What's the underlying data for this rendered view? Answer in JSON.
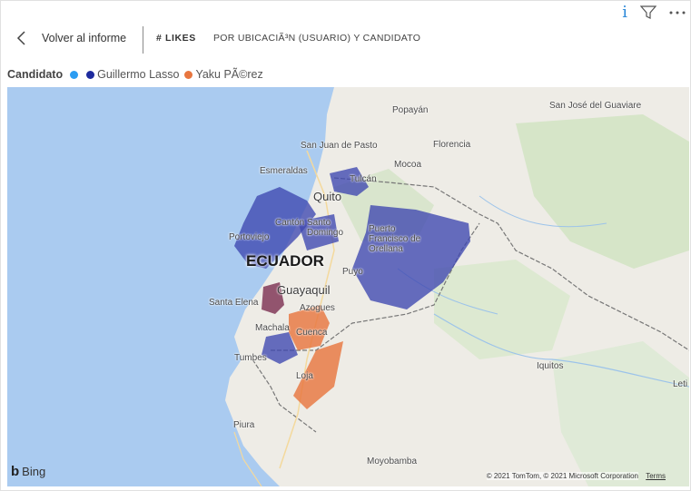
{
  "toolbar": {
    "info_glyph": "i",
    "filter_icon": "filter-icon",
    "more_icon": "more-options-icon"
  },
  "header": {
    "back_label": "Volver al informe",
    "metric_label": "# LIKES",
    "breakdown_label": "POR UBICACIÃ³N (USUARIO) Y CANDIDATO"
  },
  "legend": {
    "title": "Candidato",
    "items": [
      {
        "label": "",
        "color": "#2b9cf2"
      },
      {
        "label": "Guillermo Lasso",
        "color": "#1e2b9e"
      },
      {
        "label": "Yaku PÃ©rez",
        "color": "#e8763f"
      }
    ]
  },
  "map": {
    "country_label": "ECUADOR",
    "places": {
      "popayan": "Popayán",
      "san_jose": "San José del\nGuaviare",
      "san_juan": "San Juan de Pasto",
      "florencia": "Florencia",
      "mocoa": "Mocoa",
      "esmeraldas": "Esmeraldas",
      "tulcan": "Tulcán",
      "quito": "Quito",
      "santo_domingo": "Santo\nDomingo",
      "canton": "Cantón",
      "puerto": "Puerto\nFrancisco de\nOrellana",
      "portoviejo": "Portoviejo",
      "puyo": "Puyo",
      "guayaquil": "Guayaquil",
      "santa_elena": "Santa Elena",
      "azogues": "Azogues",
      "machala": "Machala",
      "cuenca": "Cuenca",
      "tumbes": "Tumbes",
      "loja": "Loja",
      "iquitos": "Iquitos",
      "leticia": "Leti",
      "piura": "Piura",
      "moyobamba": "Moyobamba"
    },
    "bing_label": "Bing",
    "copyright": "© 2021 TomTom, © 2021 Microsoft Corporation",
    "terms": "Terms"
  }
}
